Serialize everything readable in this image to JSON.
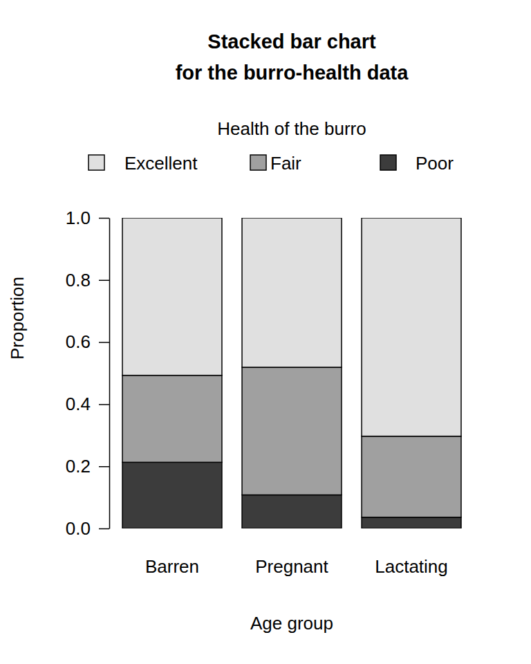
{
  "chart_data": {
    "type": "bar",
    "stacked": true,
    "title": "Stacked bar chart\nfor the burro-health data",
    "x_label": "Age group",
    "y_label": "Proportion",
    "legend_title": "Health of the burro",
    "legend": "top",
    "categories": [
      "Barren",
      "Pregnant",
      "Lactating"
    ],
    "series": [
      {
        "name": "Excellent",
        "color": "#e0e0e0",
        "values": [
          0.507,
          0.481,
          0.703
        ]
      },
      {
        "name": "Fair",
        "color": "#a0a0a0",
        "values": [
          0.28,
          0.411,
          0.261
        ]
      },
      {
        "name": "Poor",
        "color": "#3c3c3c",
        "values": [
          0.213,
          0.108,
          0.036
        ]
      }
    ],
    "ylim": [
      0,
      1
    ],
    "yticks": [
      {
        "value": 0,
        "label": "0.0"
      },
      0.2,
      0.4,
      0.6,
      0.8,
      {
        "value": 1,
        "label": "1.0"
      }
    ]
  }
}
